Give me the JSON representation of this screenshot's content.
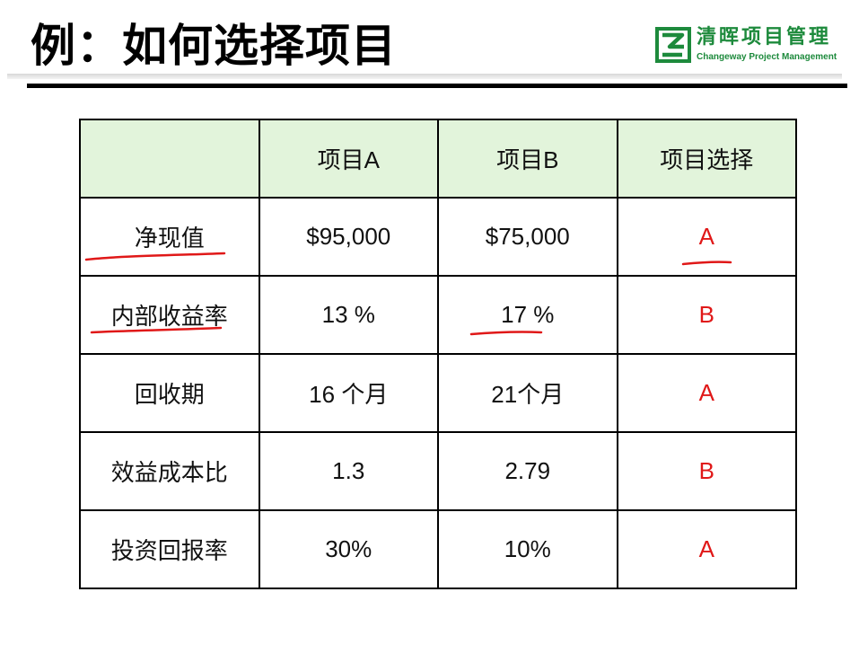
{
  "slide": {
    "title": "例：如何选择项目",
    "logo": {
      "name_cn": "清晖项目管理",
      "name_en": "Changeway Project Management"
    }
  },
  "table": {
    "columns": [
      "",
      "项目A",
      "项目B",
      "项目选择"
    ],
    "rows": [
      {
        "label": "净现值",
        "project_a": "$95,000",
        "project_b": "$75,000",
        "choice": "A"
      },
      {
        "label": "内部收益率",
        "project_a": "13 %",
        "project_b": "17 %",
        "choice": "B"
      },
      {
        "label": "回收期",
        "project_a": "16 个月",
        "project_b": "21个月",
        "choice": "A"
      },
      {
        "label": "效益成本比",
        "project_a": "1.3",
        "project_b": "2.79",
        "choice": "B"
      },
      {
        "label": "投资回报率",
        "project_a": "30%",
        "project_b": "10%",
        "choice": "A"
      }
    ]
  },
  "colors": {
    "header_bg": "#e2f4db",
    "choice_text": "#e01818",
    "annotation_ink": "#e01818",
    "brand_green": "#1d8a3c"
  },
  "annotations": {
    "underlined_cells": [
      "净现值",
      "内部收益率",
      "17 %",
      "A"
    ]
  }
}
